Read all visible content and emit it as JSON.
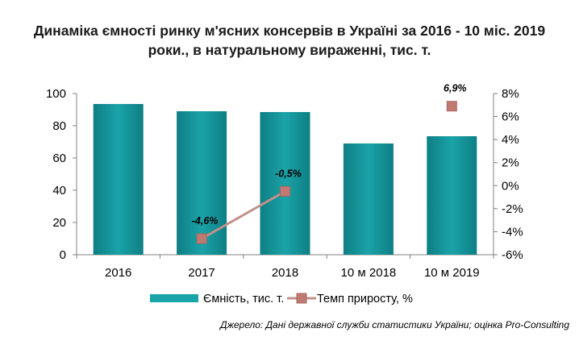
{
  "title_lines": [
    "Динаміка ємності ринку м'ясних консервів в Україні за 2016 - 10 міс. 2019",
    "роки., в натуральному вираженні, тис. т."
  ],
  "source": "Джерело: Дані державної служби статистики України; оцінка Pro-Consulting",
  "colors": {
    "bar": "#1aa3a8",
    "bar_dark": "#0e7f84",
    "line": "#c0908a",
    "marker": "#c07a72",
    "axis": "#808080"
  },
  "chart_data": {
    "type": "bar",
    "categories": [
      "2016",
      "2017",
      "2018",
      "10 м 2018",
      "10 м 2019"
    ],
    "series": [
      {
        "name": "Ємність, тис. т.",
        "type": "bar",
        "axis": "left",
        "values": [
          93.5,
          89,
          88.5,
          69,
          73.5
        ]
      },
      {
        "name": "Темп приросту,  %",
        "type": "line",
        "axis": "right",
        "values": [
          null,
          -4.6,
          -0.5,
          null,
          6.9
        ],
        "labels": [
          null,
          "-4,6%",
          "-0,5%",
          null,
          "6,9%"
        ],
        "segments": [
          [
            1,
            2
          ]
        ]
      }
    ],
    "y_left": {
      "min": 0,
      "max": 100,
      "ticks": [
        0,
        20,
        40,
        60,
        80,
        100
      ],
      "tick_labels": [
        "0",
        "20",
        "40",
        "60",
        "80",
        "100"
      ]
    },
    "y_right": {
      "min": -6,
      "max": 8,
      "ticks": [
        -6,
        -4,
        -2,
        0,
        2,
        4,
        6,
        8
      ],
      "tick_labels": [
        "-6%",
        "-4%",
        "-2%",
        "0%",
        "2%",
        "4%",
        "6%",
        "8%"
      ]
    },
    "grid": false,
    "legend_position": "bottom"
  }
}
